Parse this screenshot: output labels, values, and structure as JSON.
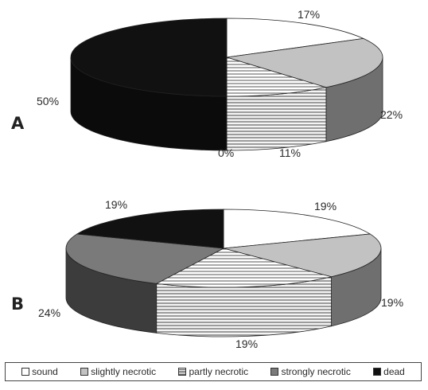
{
  "chart_data": [
    {
      "type": "pie",
      "panel": "A",
      "categories": [
        "sound",
        "slightly necrotic",
        "partly necrotic",
        "strongly necrotic",
        "dead"
      ],
      "values": [
        17,
        22,
        11,
        0,
        50
      ],
      "value_labels": [
        "17%",
        "22%",
        "11%",
        "0%",
        "50%"
      ]
    },
    {
      "type": "pie",
      "panel": "B",
      "categories": [
        "sound",
        "slightly necrotic",
        "partly necrotic",
        "strongly necrotic",
        "dead"
      ],
      "values": [
        19,
        19,
        19,
        24,
        19
      ],
      "value_labels": [
        "19%",
        "19%",
        "19%",
        "24%",
        "19%"
      ]
    }
  ],
  "legend": {
    "items": [
      {
        "label": "sound",
        "pattern": "white"
      },
      {
        "label": "slightly necrotic",
        "pattern": "light-gray"
      },
      {
        "label": "partly necrotic",
        "pattern": "horizontal-lines"
      },
      {
        "label": "strongly necrotic",
        "pattern": "dark-gray"
      },
      {
        "label": "dead",
        "pattern": "black"
      }
    ]
  },
  "colors": {
    "sound": "#ffffff",
    "slightly necrotic": "#c2c2c2",
    "partly necrotic_bg": "#ffffff",
    "partly necrotic_line": "#555555",
    "strongly necrotic": "#7a7a7a",
    "dead": "#111111"
  }
}
